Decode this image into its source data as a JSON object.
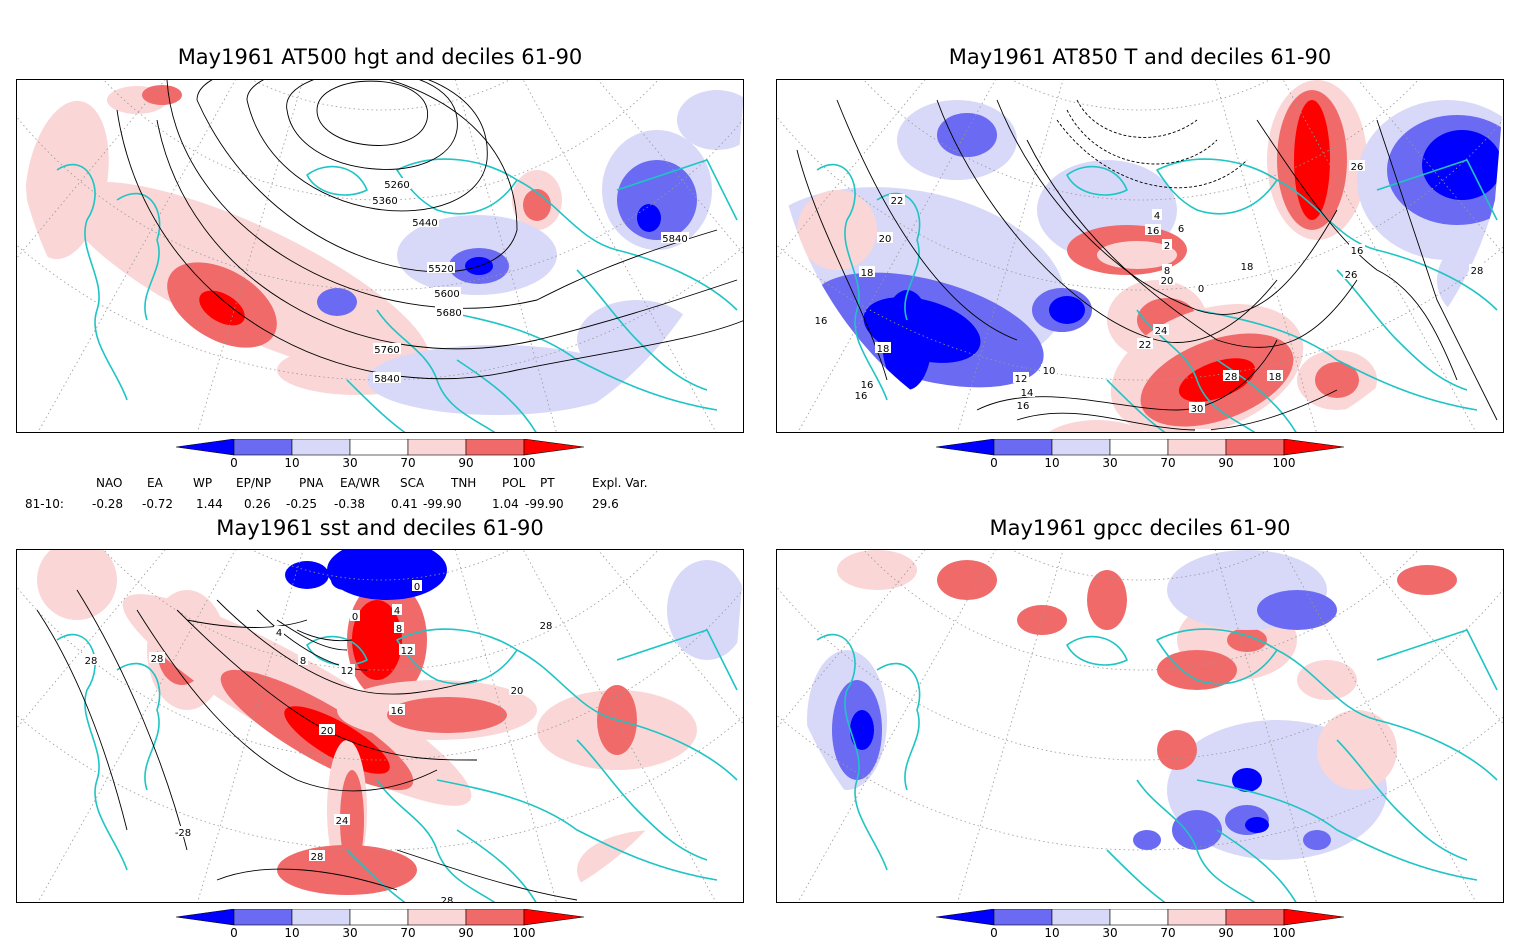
{
  "panels": [
    {
      "id": "p1",
      "title": "May1961 AT500 hgt and deciles 61-90",
      "contour_labels": [
        "5260",
        "5360",
        "5440",
        "5520",
        "5600",
        "5680",
        "5760",
        "5840",
        "5840"
      ]
    },
    {
      "id": "p2",
      "title": "May1961 AT850 T and deciles 61-90",
      "contour_labels": [
        "22",
        "20",
        "18",
        "16",
        "16",
        "16",
        "18",
        "12",
        "14",
        "16",
        "10",
        "20",
        "18",
        "26",
        "24",
        "22",
        "20",
        "28",
        "30",
        "26",
        "24",
        "22",
        "20",
        "18",
        "16",
        "26",
        "26",
        "28",
        "16",
        "4",
        "2",
        "6",
        "8",
        "0",
        "18"
      ]
    },
    {
      "id": "p3",
      "title": "May1961 sst and deciles 61-90",
      "contour_labels": [
        "28",
        "28",
        "0",
        "4",
        "8",
        "12",
        "16",
        "20",
        "24",
        "28",
        "28",
        "0",
        "8",
        "4",
        "12",
        "20",
        "-28",
        "28"
      ]
    },
    {
      "id": "p4",
      "title": "May1961 gpcc deciles 61-90",
      "contour_labels": []
    }
  ],
  "colorbar": {
    "ticks": [
      "0",
      "10",
      "30",
      "70",
      "90",
      "100"
    ],
    "colors": [
      "#0000ff",
      "#6a6af2",
      "#d8d8f8",
      "#ffffff",
      "#fad6d6",
      "#f06a6a",
      "#ff0000"
    ]
  },
  "indices": {
    "row_label": "81-10:",
    "headers": [
      "NAO",
      "EA",
      "WP",
      "EP/NP",
      "PNA",
      "EA/WR",
      "SCA",
      "TNH",
      "POL",
      "PT",
      "Expl. Var."
    ],
    "values": [
      "-0.28",
      "-0.72",
      "1.44",
      "0.26",
      "-0.25",
      "-0.38",
      "0.41",
      "-99.90",
      "1.04",
      "-99.90",
      "29.6"
    ]
  }
}
